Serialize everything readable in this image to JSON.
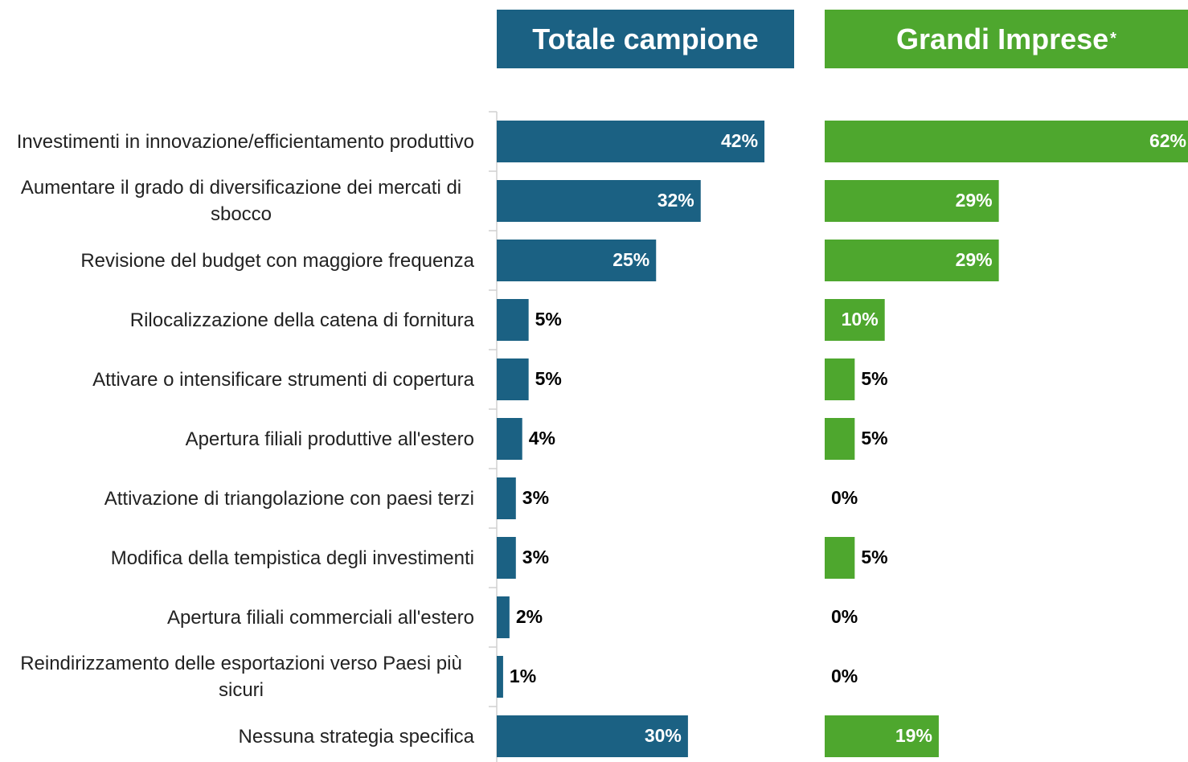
{
  "chart_data": [
    {
      "type": "bar",
      "orientation": "horizontal",
      "title": "Totale campione",
      "color": "#1b6183",
      "categories": [
        "Investimenti in innovazione/efficientamento produttivo",
        "Aumentare il grado di diversificazione dei mercati di sbocco",
        "Revisione del budget con maggiore frequenza",
        "Rilocalizzazione della catena di fornitura",
        "Attivare o intensificare strumenti di copertura",
        "Apertura filiali produttive all'estero",
        "Attivazione di triangolazione con paesi terzi",
        "Modifica della tempistica degli investimenti",
        "Apertura filiali commerciali all'estero",
        "Reindirizzamento delle esportazioni verso Paesi più sicuri",
        "Nessuna strategia specifica"
      ],
      "values": [
        42,
        32,
        25,
        5,
        5,
        4,
        3,
        3,
        2,
        1,
        30
      ],
      "value_labels": [
        "42%",
        "32%",
        "25%",
        "5%",
        "5%",
        "4%",
        "3%",
        "3%",
        "2%",
        "1%",
        "30%"
      ]
    },
    {
      "type": "bar",
      "orientation": "horizontal",
      "title": "Grandi Imprese",
      "title_mark": "*",
      "color": "#4ea72e",
      "values": [
        62,
        29,
        29,
        10,
        5,
        5,
        0,
        5,
        0,
        0,
        19
      ],
      "value_labels": [
        "62%",
        "29%",
        "29%",
        "10%",
        "5%",
        "5%",
        "0%",
        "5%",
        "0%",
        "0%",
        "19%"
      ]
    }
  ]
}
